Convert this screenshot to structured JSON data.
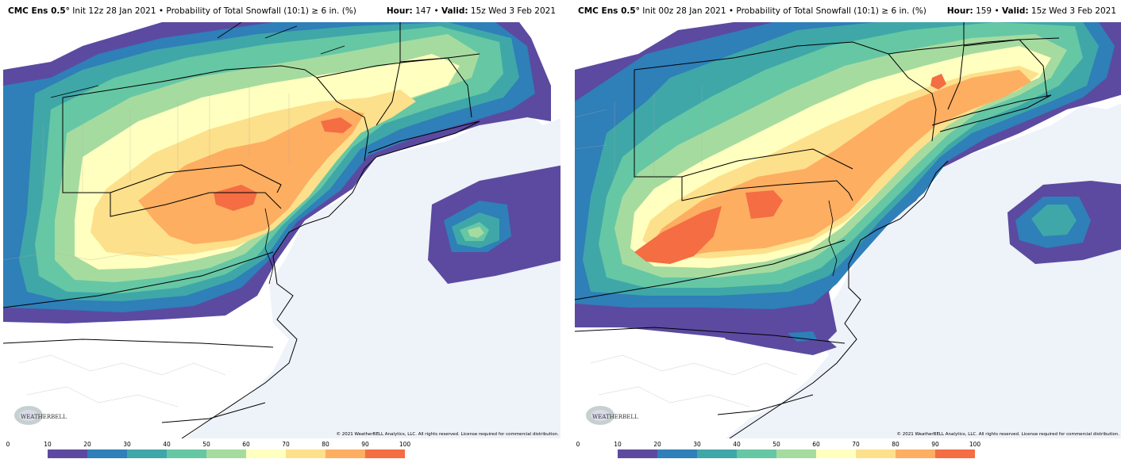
{
  "panels": [
    {
      "model": "CMC Ens 0.5°",
      "init": "Init 12z 28 Jan 2021",
      "product": "• Probability of Total Snowfall (10:1) ≥ 6 in. (%)",
      "hour_label": "Hour:",
      "hour": "147",
      "valid_label": "Valid:",
      "valid": "15z Wed 3 Feb 2021",
      "copyright": "© 2021 WeatherBELL Analytics, LLC. All rights reserved. License required for commercial distribution.",
      "logo_text": "WEATHERBELL"
    },
    {
      "model": "CMC Ens 0.5°",
      "init": "Init 00z 28 Jan 2021",
      "product": "• Probability of Total Snowfall (10:1) ≥ 6 in. (%)",
      "hour_label": "Hour:",
      "hour": "159",
      "valid_label": "Valid:",
      "valid": "15z Wed 3 Feb 2021",
      "copyright": "© 2021 WeatherBELL Analytics, LLC. All rights reserved. License required for commercial distribution.",
      "logo_text": "WEATHERBELL"
    }
  ],
  "colorbar": {
    "ticks": [
      "0",
      "10",
      "20",
      "30",
      "40",
      "50",
      "60",
      "70",
      "80",
      "90",
      "100"
    ],
    "colors": [
      "#ffffff",
      "#5b4aa0",
      "#2f7fb8",
      "#3fa7a8",
      "#66c7a4",
      "#a6dba0",
      "#ffffbf",
      "#fde08b",
      "#fdae61",
      "#f46d43",
      "#d73027",
      "#a50026"
    ]
  },
  "map_colors": {
    "ocean": "#eef2f9",
    "land": "#ffffff",
    "c10": "#5b4aa0",
    "c20": "#2f7fb8",
    "c30": "#3fa7a8",
    "c40": "#66c7a4",
    "c50": "#a6dba0",
    "c60": "#ffffbf",
    "c70": "#fde08b",
    "c80": "#fdae61",
    "c90": "#f46d43"
  }
}
